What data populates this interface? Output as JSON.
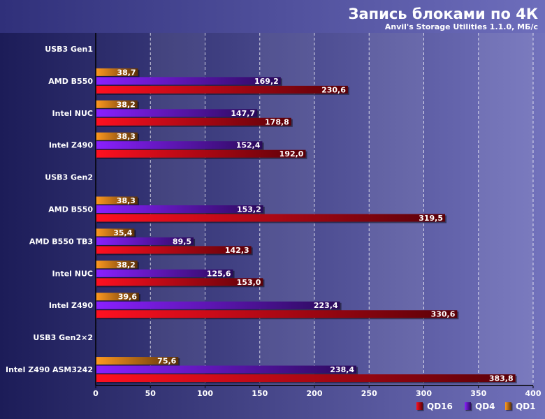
{
  "chart_data": {
    "type": "bar",
    "orientation": "horizontal",
    "title": "Запись блоками по 4К",
    "subtitle": "Anvil's Storage Utilities 1.1.0, МБ/с",
    "xlim": [
      0,
      400
    ],
    "xticks": [
      0,
      50,
      100,
      150,
      200,
      250,
      300,
      350,
      400
    ],
    "grid": true,
    "legend_position": "bottom-right",
    "colors": {
      "QD16": "#e00010",
      "QD4": "#6a10e0",
      "QD1": "#e08a10"
    },
    "rows": [
      {
        "label": "USB3 Gen1",
        "group": true
      },
      {
        "label": "AMD B550",
        "qd1": 38.7,
        "qd4": 169.2,
        "qd16": 230.6,
        "qd1_label": "38,7",
        "qd4_label": "169,2",
        "qd16_label": "230,6"
      },
      {
        "label": "Intel NUC",
        "qd1": 38.2,
        "qd4": 147.7,
        "qd16": 178.8,
        "qd1_label": "38,2",
        "qd4_label": "147,7",
        "qd16_label": "178,8"
      },
      {
        "label": "Intel Z490",
        "qd1": 38.3,
        "qd4": 152.4,
        "qd16": 192.0,
        "qd1_label": "38,3",
        "qd4_label": "152,4",
        "qd16_label": "192,0"
      },
      {
        "label": "USB3 Gen2",
        "group": true
      },
      {
        "label": "AMD B550",
        "qd1": 38.3,
        "qd4": 153.2,
        "qd16": 319.5,
        "qd1_label": "38,3",
        "qd4_label": "153,2",
        "qd16_label": "319,5"
      },
      {
        "label": "AMD B550 TB3",
        "qd1": 35.4,
        "qd4": 89.5,
        "qd16": 142.3,
        "qd1_label": "35,4",
        "qd4_label": "89,5",
        "qd16_label": "142,3"
      },
      {
        "label": "Intel NUC",
        "qd1": 38.2,
        "qd4": 125.6,
        "qd16": 153.0,
        "qd1_label": "38,2",
        "qd4_label": "125,6",
        "qd16_label": "153,0"
      },
      {
        "label": "Intel Z490",
        "qd1": 39.6,
        "qd4": 223.4,
        "qd16": 330.6,
        "qd1_label": "39,6",
        "qd4_label": "223,4",
        "qd16_label": "330,6"
      },
      {
        "label": "USB3 Gen2×2",
        "group": true
      },
      {
        "label": "Intel Z490 ASM3242",
        "qd1": 75.6,
        "qd4": 238.4,
        "qd16": 383.8,
        "qd1_label": "75,6",
        "qd4_label": "238,4",
        "qd16_label": "383,8"
      }
    ],
    "legend": [
      "QD16",
      "QD4",
      "QD1"
    ]
  }
}
